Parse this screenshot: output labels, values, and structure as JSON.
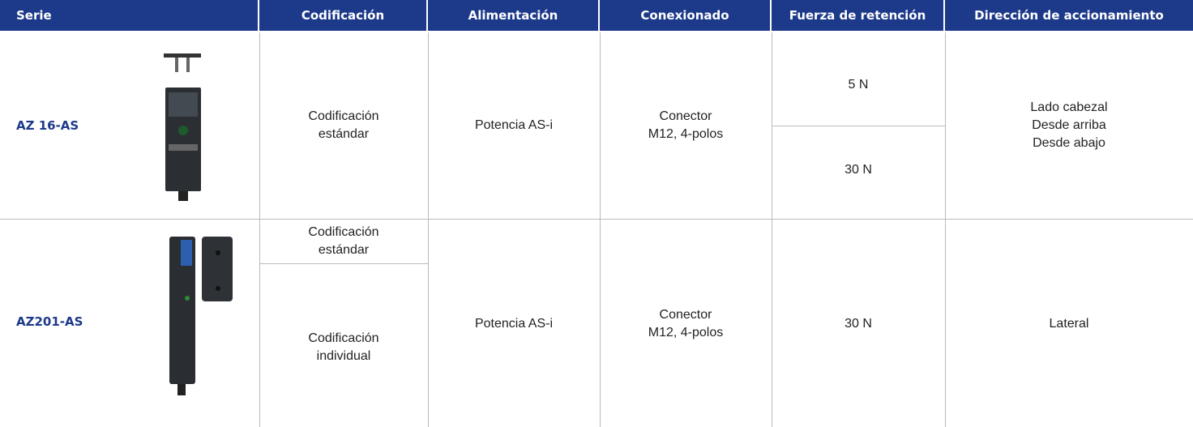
{
  "table": {
    "header": [
      "Serie",
      "Codificación",
      "Alimentación",
      "Conexionado",
      "Fuerza de retención",
      "Dirección de accionamiento"
    ],
    "rows": [
      {
        "serie": "AZ 16-AS",
        "codificacion": [
          "Codificación\nestándar"
        ],
        "alimentacion": "Potencia AS-i",
        "conexionado": "Conector\nM12, 4-polos",
        "fuerza": [
          "5 N",
          "30 N"
        ],
        "direccion": "Lado cabezal\nDesde arriba\nDesde abajo"
      },
      {
        "serie": "AZ201-AS",
        "codificacion": [
          "Codificación\nestándar",
          "Codificación\nindividual"
        ],
        "alimentacion": "Potencia AS-i",
        "conexionado": "Conector\nM12, 4-polos",
        "fuerza": [
          "30 N"
        ],
        "direccion": "Lateral"
      }
    ]
  }
}
